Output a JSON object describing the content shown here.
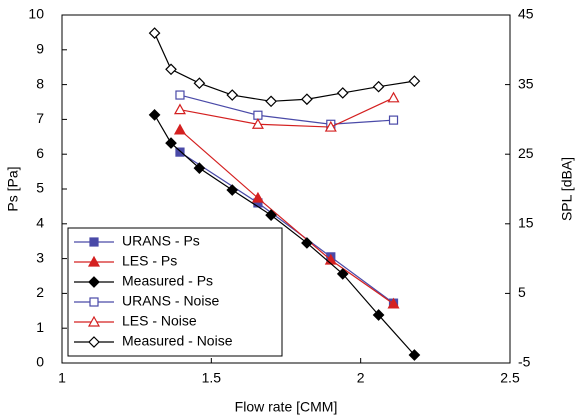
{
  "chart_data": {
    "type": "line",
    "x_label": "Flow rate [CMM]",
    "y_label": "Ps [Pa]",
    "y2_label": "SPL [dBA]",
    "xlim": [
      1,
      2.5
    ],
    "xticks": [
      1,
      1.5,
      2,
      2.5
    ],
    "ylim": [
      0,
      10
    ],
    "yticks": [
      0,
      1,
      2,
      3,
      4,
      5,
      6,
      7,
      8,
      9,
      10
    ],
    "y2lim": [
      -5,
      45
    ],
    "y2ticks": [
      -5,
      5,
      15,
      25,
      35,
      45
    ],
    "legend": "lower left",
    "grid": false,
    "series": [
      {
        "name": "URANS - Ps",
        "color": "#4a4aa8",
        "marker": "square",
        "filled": true,
        "x": [
          1.395,
          1.656,
          1.9,
          2.11
        ],
        "values": [
          6.06,
          4.6,
          3.05,
          1.72
        ]
      },
      {
        "name": "LES - Ps",
        "color": "#d42020",
        "marker": "triangle",
        "filled": true,
        "x": [
          1.395,
          1.656,
          1.9,
          2.11
        ],
        "values": [
          6.7,
          4.74,
          2.96,
          1.7
        ]
      },
      {
        "name": "Measured - Ps",
        "color": "#000000",
        "marker": "diamond",
        "filled": true,
        "x": [
          1.31,
          1.365,
          1.46,
          1.57,
          1.7,
          1.82,
          1.94,
          2.06,
          2.18
        ],
        "values": [
          7.13,
          6.32,
          5.6,
          4.97,
          4.25,
          3.45,
          2.56,
          1.38,
          0.23
        ]
      },
      {
        "name": "URANS - Noise",
        "color": "#4a4aa8",
        "marker": "square",
        "filled": false,
        "axis": "y2",
        "x": [
          1.395,
          1.656,
          1.9,
          2.11
        ],
        "values": [
          33.5,
          30.6,
          29.3,
          29.9
        ]
      },
      {
        "name": "LES - Noise",
        "color": "#d42020",
        "marker": "triangle",
        "filled": false,
        "axis": "y2",
        "x": [
          1.395,
          1.656,
          1.9,
          2.11
        ],
        "values": [
          31.4,
          29.3,
          28.9,
          33.1
        ]
      },
      {
        "name": "Measured - Noise",
        "color": "#000000",
        "marker": "diamond",
        "filled": false,
        "axis": "y2",
        "x": [
          1.31,
          1.365,
          1.46,
          1.57,
          1.7,
          1.82,
          1.94,
          2.06,
          2.18
        ],
        "values": [
          42.4,
          37.2,
          35.2,
          33.5,
          32.6,
          32.9,
          33.8,
          34.7,
          35.5
        ]
      }
    ]
  }
}
